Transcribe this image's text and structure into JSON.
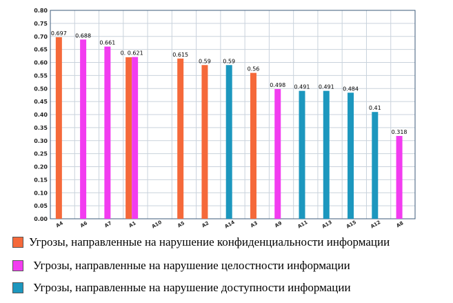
{
  "chart_data": {
    "type": "bar",
    "categories": [
      "А4",
      "А6",
      "А7",
      "А1",
      "А10",
      "А5",
      "А2",
      "А14",
      "А3",
      "А9",
      "А11",
      "А13",
      "А15",
      "А12",
      "А8"
    ],
    "series": [
      {
        "name": "Угрозы, направленные на нарушение конфиденциальности информации",
        "color": "#f5693a",
        "values": [
          0.697,
          null,
          null,
          0.62,
          null,
          0.615,
          0.59,
          null,
          0.56,
          null,
          null,
          null,
          null,
          null,
          null
        ]
      },
      {
        "name": "Угрозы, направленные на нарушение целостности информации",
        "color": "#f23cf0",
        "values": [
          null,
          0.688,
          0.661,
          0.621,
          null,
          null,
          null,
          null,
          null,
          0.498,
          null,
          null,
          null,
          null,
          0.318
        ]
      },
      {
        "name": "Угрозы, направленные на нарушение доступности информации",
        "color": "#1c97be",
        "values": [
          null,
          null,
          null,
          null,
          null,
          null,
          null,
          0.59,
          null,
          null,
          0.491,
          0.491,
          0.484,
          0.41,
          null
        ]
      }
    ],
    "data_labels": [
      "0.697",
      "0.688",
      "0.661",
      "0. 0.621",
      "",
      "0.615",
      "0.59",
      "0.59",
      "0.56",
      "0.498",
      "0.491",
      "0.491",
      "0.484",
      "0.41",
      "0.318"
    ],
    "yticks": [
      "0.00",
      "0.05",
      "0.10",
      "0.15",
      "0.20",
      "0.25",
      "0.30",
      "0.35",
      "0.40",
      "0.45",
      "0.50",
      "0.55",
      "0.60",
      "0.65",
      "0.70",
      "0.75",
      "0.80"
    ],
    "ylim": [
      0,
      0.8
    ],
    "grid": true,
    "legend_position": "bottom"
  }
}
